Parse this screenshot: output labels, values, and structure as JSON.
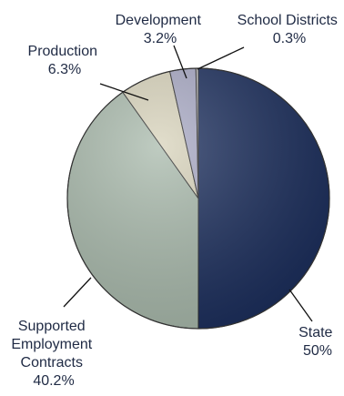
{
  "chart_data": {
    "type": "pie",
    "title": "",
    "slices": [
      {
        "label": "State",
        "value": 50,
        "value_label": "50%",
        "color": "#1a2d5c"
      },
      {
        "label": "Supported Employment Contracts",
        "value": 40.2,
        "value_label": "40.2%",
        "color": "#a9baac"
      },
      {
        "label": "Production",
        "value": 6.3,
        "value_label": "6.3%",
        "color": "#d8d3bb"
      },
      {
        "label": "Development",
        "value": 3.2,
        "value_label": "3.2%",
        "color": "#a8a9c4"
      },
      {
        "label": "School Districts",
        "value": 0.3,
        "value_label": "0.3%",
        "color": "#c8c8c8"
      }
    ]
  }
}
